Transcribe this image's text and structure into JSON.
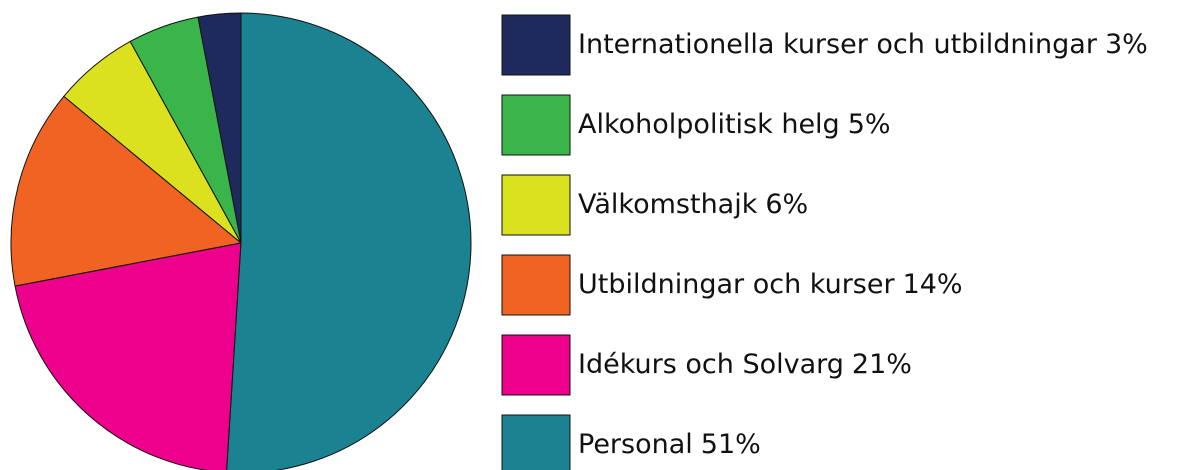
{
  "chart_data": {
    "type": "pie",
    "categories": [
      "Internationella kurser och utbildningar",
      "Alkoholpolitisk helg",
      "Välkomsthajk",
      "Utbildningar och kurser",
      "Idékurs och Solvarg",
      "Personal"
    ],
    "values": [
      3,
      5,
      6,
      14,
      21,
      51
    ],
    "value_labels": [
      "3%",
      "5%",
      "6%",
      "14%",
      "21%",
      "51%"
    ],
    "colors": [
      "#1f2a5c",
      "#3ab54a",
      "#dbe11f",
      "#f06322",
      "#ec008c",
      "#1a8290"
    ]
  }
}
